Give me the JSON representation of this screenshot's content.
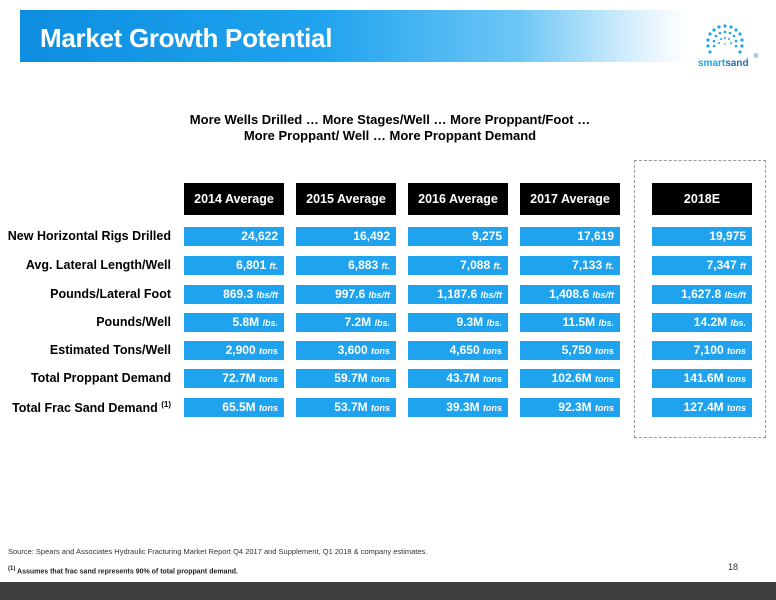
{
  "header": {
    "title": "Market Growth Potential",
    "logo": {
      "name_part1": "smart",
      "name_part2": "sand",
      "mark": "®"
    }
  },
  "subtitle": {
    "line1": "More Wells Drilled … More Stages/Well … More Proppant/Foot …",
    "line2": "More Proppant/ Well … More Proppant Demand"
  },
  "table": {
    "columns": [
      "2014 Average",
      "2015 Average",
      "2016 Average",
      "2017 Average",
      "2018E"
    ],
    "rows": [
      {
        "label": "New Horizontal Rigs Drilled",
        "label_sup": "",
        "cells": [
          {
            "value": "24,622",
            "unit": ""
          },
          {
            "value": "16,492",
            "unit": ""
          },
          {
            "value": "9,275",
            "unit": ""
          },
          {
            "value": "17,619",
            "unit": ""
          },
          {
            "value": "19,975",
            "unit": ""
          }
        ]
      },
      {
        "label": "Avg. Lateral Length/Well",
        "label_sup": "",
        "cells": [
          {
            "value": "6,801",
            "unit": "ft."
          },
          {
            "value": "6,883",
            "unit": "ft."
          },
          {
            "value": "7,088",
            "unit": "ft."
          },
          {
            "value": "7,133",
            "unit": "ft."
          },
          {
            "value": "7,347",
            "unit": "ft"
          }
        ]
      },
      {
        "label": "Pounds/Lateral Foot",
        "label_sup": "",
        "cells": [
          {
            "value": "869.3",
            "unit": "lbs/ft"
          },
          {
            "value": "997.6",
            "unit": "lbs/ft"
          },
          {
            "value": "1,187.6",
            "unit": "lbs/ft"
          },
          {
            "value": "1,408.6",
            "unit": "lbs/ft"
          },
          {
            "value": "1,627.8",
            "unit": "lbs/ft"
          }
        ]
      },
      {
        "label": "Pounds/Well",
        "label_sup": "",
        "cells": [
          {
            "value": "5.8M",
            "unit": "lbs."
          },
          {
            "value": "7.2M",
            "unit": "lbs."
          },
          {
            "value": "9.3M",
            "unit": "lbs."
          },
          {
            "value": "11.5M",
            "unit": "lbs."
          },
          {
            "value": "14.2M",
            "unit": "lbs."
          }
        ]
      },
      {
        "label": "Estimated Tons/Well",
        "label_sup": "",
        "cells": [
          {
            "value": "2,900",
            "unit": "tons"
          },
          {
            "value": "3,600",
            "unit": "tons"
          },
          {
            "value": "4,650",
            "unit": "tons"
          },
          {
            "value": "5,750",
            "unit": "tons"
          },
          {
            "value": "7,100",
            "unit": "tons"
          }
        ]
      },
      {
        "label": "Total Proppant Demand",
        "label_sup": "",
        "cells": [
          {
            "value": "72.7M",
            "unit": "tons"
          },
          {
            "value": "59.7M",
            "unit": "tons"
          },
          {
            "value": "43.7M",
            "unit": "tons"
          },
          {
            "value": "102.6M",
            "unit": "tons"
          },
          {
            "value": "141.6M",
            "unit": "tons"
          }
        ]
      },
      {
        "label": "Total Frac Sand Demand",
        "label_sup": "(1)",
        "cells": [
          {
            "value": "65.5M",
            "unit": "tons"
          },
          {
            "value": "53.7M",
            "unit": "tons"
          },
          {
            "value": "39.3M",
            "unit": "tons"
          },
          {
            "value": "92.3M",
            "unit": "tons"
          },
          {
            "value": "127.4M",
            "unit": "tons"
          }
        ]
      }
    ]
  },
  "footer": {
    "source": "Source: Spears and Associates Hydraulic Fracturing Market Report Q4 2017 and Supplement, Q1 2018 & company estimates.",
    "note_sup": "(1)",
    "note": "Assumes that frac sand represents 90% of total proppant demand.",
    "page_number": "18"
  },
  "colors": {
    "accent": "#1fa3ee",
    "header_cell": "#000000",
    "bottom_bar": "#3d3d3d"
  }
}
